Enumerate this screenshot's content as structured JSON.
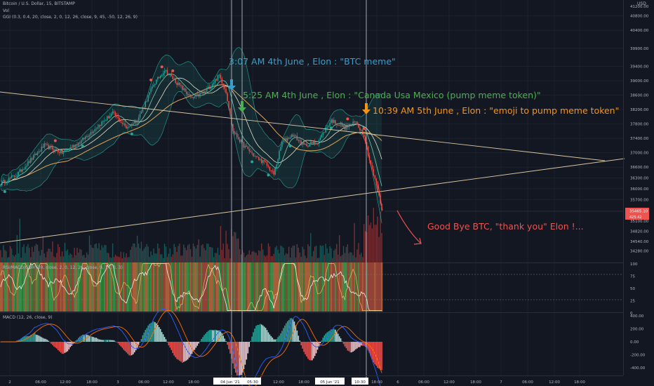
{
  "header": {
    "symbol_line": "Bitcoin / U.S. Dollar, 15, BITSTAMP",
    "vol_label": "Vol",
    "ggi_label": "GGI (0.3, 0.4, 20, close, 2, 0, 12, 26, close, 9, 45, -50, 12, 26, 9)",
    "currency": "USD"
  },
  "colors": {
    "background": "#131722",
    "up_candle": "#26a69a",
    "down_candle": "#ef5350",
    "annotation_blue": "#3b9ec9",
    "annotation_green": "#4caf50",
    "annotation_orange": "#f7931a",
    "annotation_red": "#ef5350",
    "trendline": "#d9c7a0"
  },
  "annotations": {
    "note1": "3:07 AM 4th June , Elon : \"BTC meme\"",
    "note2": "5:25 AM 4th June , Elon : \"Canada Usa Mexico (pump meme token)\"",
    "note3": "10:39 AM 5th June , Elon : \"emoji to pump meme token\"",
    "note4": "Good Bye BTC, \"thank you\" Elon !..."
  },
  "panels": {
    "rsi_label": "RSI/MACD/GDH (20, close, 2, 0, 12, 26, close, 9, 14, 3, 3)",
    "macd_label": "MACD (12, 26, close, 9)"
  },
  "chart_data": [
    {
      "type": "candlestick",
      "panel": "price",
      "y_ticks": [
        40800,
        40400,
        39900,
        39400,
        39000,
        38600,
        38200,
        37800,
        37400,
        37000,
        36600,
        36300,
        36000,
        35700,
        35100,
        34820,
        34540,
        34280
      ],
      "y_ticks_display": [
        "40800.00",
        "40400.00",
        "39900.00",
        "39400.00",
        "39000.00",
        "38600.00",
        "38200.00",
        "37800.00",
        "37400.00",
        "37000.00",
        "36600.00",
        "36300.00",
        "36000.00",
        "35700.00",
        "35100.00",
        "34820.00",
        "34540.00",
        "34280.00"
      ],
      "top_tick_display": "41200.00",
      "last_price": "35465.10",
      "last_price_sub": "425.42",
      "keypoints": [
        {
          "t": 0,
          "p": 36150
        },
        {
          "t": 12,
          "p": 36400
        },
        {
          "t": 22,
          "p": 36800
        },
        {
          "t": 32,
          "p": 37200
        },
        {
          "t": 45,
          "p": 37000
        },
        {
          "t": 58,
          "p": 37300
        },
        {
          "t": 70,
          "p": 37700
        },
        {
          "t": 82,
          "p": 38100
        },
        {
          "t": 92,
          "p": 37700
        },
        {
          "t": 100,
          "p": 37900
        },
        {
          "t": 112,
          "p": 38900
        },
        {
          "t": 120,
          "p": 39300
        },
        {
          "t": 130,
          "p": 38900
        },
        {
          "t": 140,
          "p": 38500
        },
        {
          "t": 150,
          "p": 38700
        },
        {
          "t": 160,
          "p": 39150
        },
        {
          "t": 165,
          "p": 38700
        },
        {
          "t": 170,
          "p": 37600
        },
        {
          "t": 178,
          "p": 37200
        },
        {
          "t": 186,
          "p": 36900
        },
        {
          "t": 194,
          "p": 36700
        },
        {
          "t": 200,
          "p": 36400
        },
        {
          "t": 206,
          "p": 37300
        },
        {
          "t": 214,
          "p": 37500
        },
        {
          "t": 222,
          "p": 37200
        },
        {
          "t": 232,
          "p": 37300
        },
        {
          "t": 242,
          "p": 37900
        },
        {
          "t": 252,
          "p": 37700
        },
        {
          "t": 260,
          "p": 37850
        },
        {
          "t": 266,
          "p": 37500
        },
        {
          "t": 270,
          "p": 36800
        },
        {
          "t": 275,
          "p": 36100
        },
        {
          "t": 279,
          "p": 35450
        }
      ],
      "time_ticks": [
        "2",
        "06:00",
        "12:00",
        "18:00",
        "3",
        "06:00",
        "12:00",
        "18:00",
        "04 Ju",
        "04 Jun '21",
        "05:30",
        "12:00",
        "18:00",
        "05 Jun '21",
        "10:30",
        "18:00",
        "6",
        "06:00",
        "12:00",
        "18:00",
        "7",
        "06:00",
        "12:00",
        "18:00"
      ]
    },
    {
      "type": "oscillator",
      "panel": "rsi",
      "y_ticks": [
        100,
        75,
        50,
        25,
        0
      ],
      "y_ticks_display": [
        "100",
        "75",
        "50",
        "25",
        "0"
      ]
    },
    {
      "type": "histogram",
      "panel": "macd",
      "y_ticks": [
        400,
        200,
        0,
        -200,
        -400
      ],
      "y_ticks_display": [
        "400.00",
        "200.00",
        "0.00",
        "-200.00",
        "-400.00"
      ]
    }
  ]
}
